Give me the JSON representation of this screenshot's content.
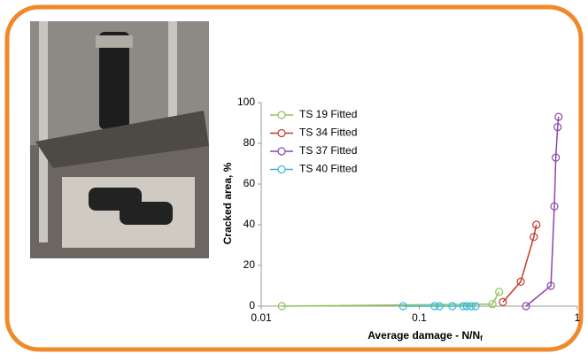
{
  "chart_data": {
    "type": "line",
    "x_scale": "log",
    "y_label": "Cracked area, %",
    "x_label": "Average damage - N/N",
    "x_label_subscript": "f",
    "xlim": [
      0.01,
      1
    ],
    "xticks": [
      0.01,
      0.1,
      1
    ],
    "ylim": [
      0,
      100
    ],
    "yticks": [
      0,
      20,
      40,
      60,
      80,
      100
    ],
    "legend": "top-left",
    "series": [
      {
        "name": "TS 19 Fitted",
        "color": "#8fc25a",
        "x": [
          0.0135,
          0.29,
          0.32
        ],
        "values": [
          0,
          1,
          7
        ]
      },
      {
        "name": "TS 34 Fitted",
        "color": "#c0392b",
        "x": [
          0.338,
          0.438,
          0.53,
          0.55
        ],
        "values": [
          2,
          12,
          34,
          40
        ]
      },
      {
        "name": "TS 37 Fitted",
        "color": "#8e44ad",
        "x": [
          0.473,
          0.68,
          0.715,
          0.73,
          0.75,
          0.76
        ],
        "values": [
          0,
          10,
          49,
          73,
          88,
          93
        ]
      },
      {
        "name": "TS 40 Fitted",
        "color": "#3cb6d8",
        "x": [
          0.079,
          0.125,
          0.134,
          0.162,
          0.19,
          0.2,
          0.213,
          0.227
        ],
        "values": [
          0,
          0,
          0,
          0,
          0,
          0,
          0,
          0
        ]
      }
    ]
  }
}
